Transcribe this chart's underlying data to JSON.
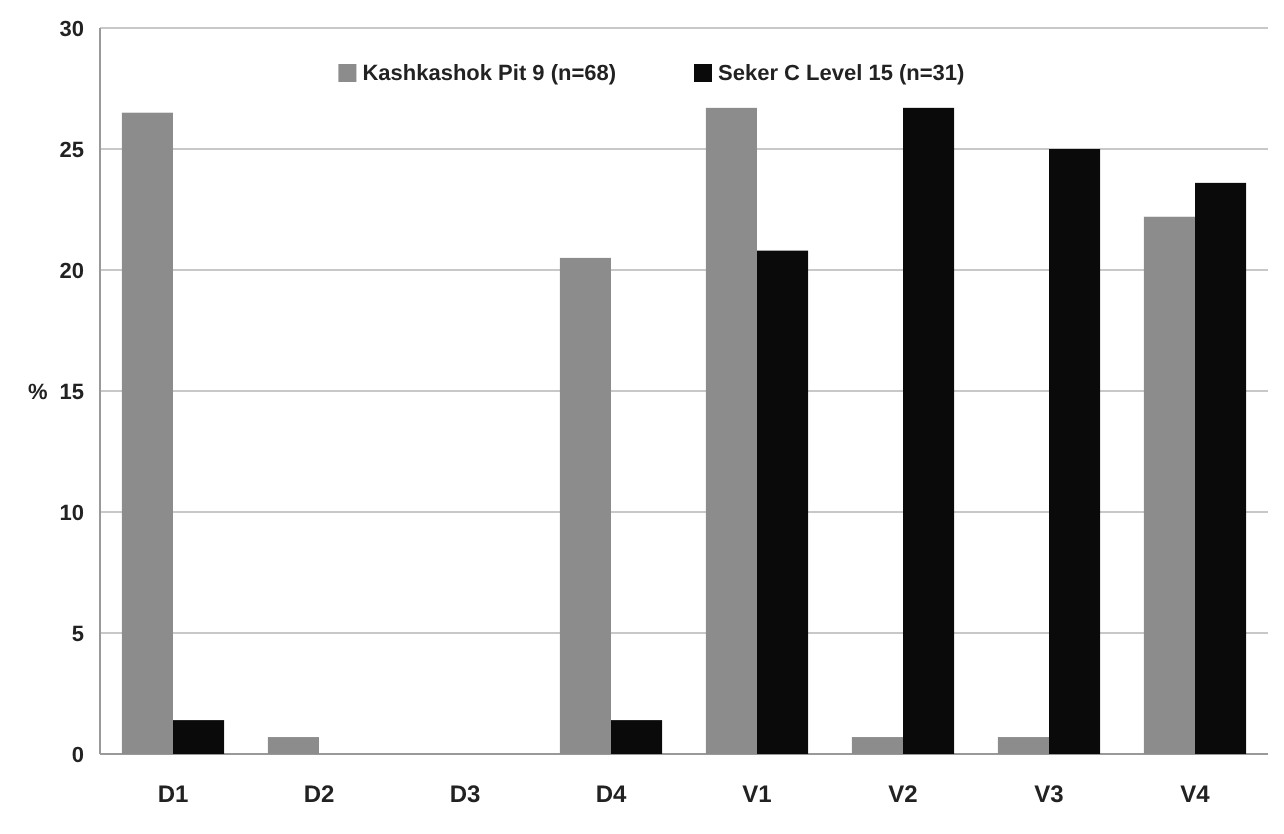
{
  "chart_data": {
    "type": "bar",
    "ylabel": "%",
    "categories": [
      "D1",
      "D2",
      "D3",
      "D4",
      "V1",
      "V2",
      "V3",
      "V4"
    ],
    "series": [
      {
        "name": "Kashkashok Pit 9 (n=68)",
        "color": "#8c8c8c",
        "values": [
          26.5,
          0.7,
          0,
          20.5,
          26.7,
          0.7,
          0.7,
          22.2
        ]
      },
      {
        "name": "Seker C Level 15 (n=31)",
        "color": "#0a0a0a",
        "values": [
          1.4,
          0,
          0,
          1.4,
          20.8,
          26.7,
          25.0,
          23.6
        ]
      }
    ],
    "ylim": [
      0,
      30
    ],
    "yticks": [
      0,
      5,
      10,
      15,
      20,
      25,
      30
    ],
    "grid": "y",
    "legend": "top"
  }
}
